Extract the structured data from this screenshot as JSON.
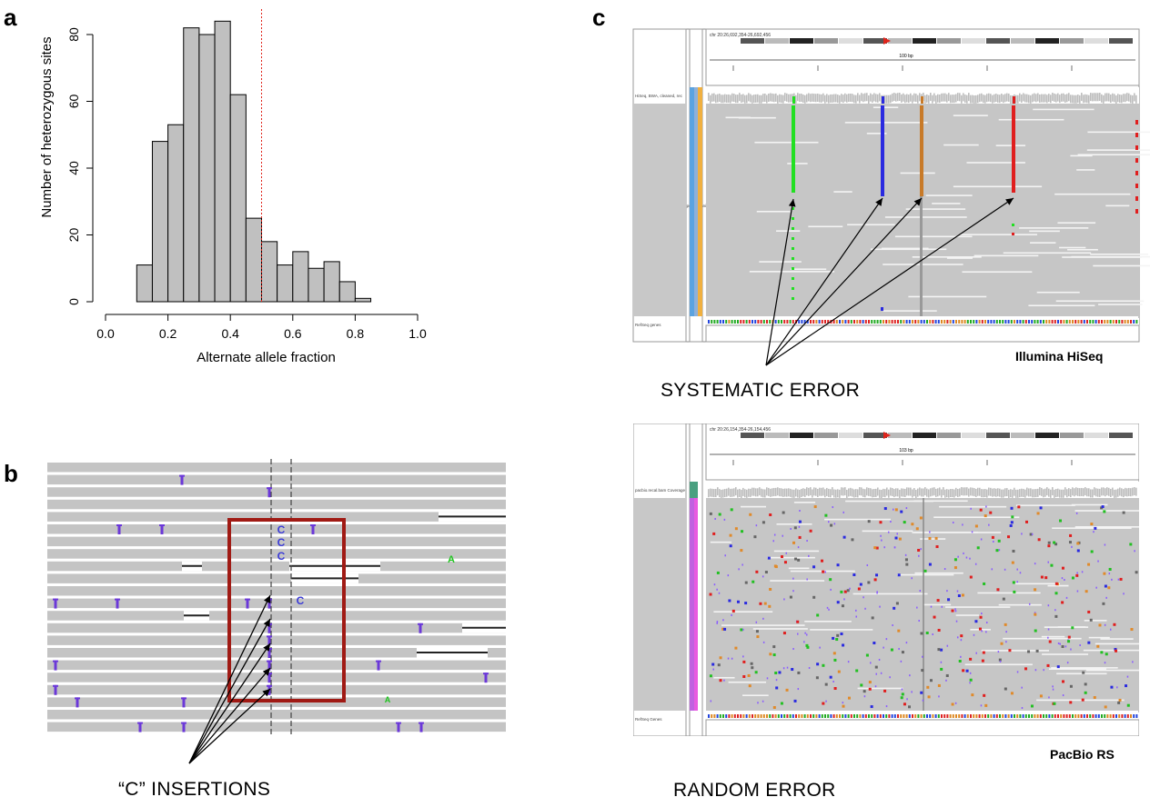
{
  "panel_labels": {
    "a": "a",
    "b": "b",
    "c": "c"
  },
  "chart_data": [
    {
      "type": "bar",
      "panel": "a",
      "bin_edges": [
        0.1,
        0.15,
        0.2,
        0.25,
        0.3,
        0.35,
        0.4,
        0.45,
        0.5,
        0.55,
        0.6,
        0.65,
        0.7,
        0.75,
        0.8,
        0.85
      ],
      "values": [
        11,
        48,
        53,
        82,
        80,
        84,
        62,
        25,
        18,
        11,
        15,
        10,
        12,
        6,
        1
      ],
      "xlabel": "Alternate allele fraction",
      "ylabel": "Number of heterozygous sites",
      "xlim": [
        0.0,
        1.0
      ],
      "ylim": [
        0,
        85
      ],
      "xticks": [
        "0.0",
        "0.2",
        "0.4",
        "0.6",
        "0.8",
        "1.0"
      ],
      "yticks": [
        "0",
        "20",
        "40",
        "60",
        "80"
      ],
      "reference_line": {
        "x": 0.5,
        "style": "dotted",
        "color": "#e0241b"
      },
      "bar_color": "#c0c0c0",
      "grid": false
    }
  ],
  "panel_b": {
    "caption": "“C” INSERTIONS",
    "inserted_bases": [
      "C",
      "C",
      "C",
      "C"
    ],
    "mismatch_base": "A",
    "box_color": "#a01a14",
    "insertion_color": "#6b38d8"
  },
  "panel_c": {
    "illumina": {
      "platform": "Illumina HiSeq",
      "caption": "SYSTEMATIC ERROR",
      "region_text": "chr 20:26,692,354-26,692,456",
      "scale_text": "100 bp",
      "tracks": [
        "HiSeq, BWA, cleaned, rec",
        "HiSeq, BWA, cleaned, recal post cleaning",
        "RefSeq genes"
      ],
      "error_colors": [
        "#22e022",
        "#2a2ae0",
        "#c87a28",
        "#e01e1e"
      ]
    },
    "pacbio": {
      "platform": "PacBio RS",
      "caption": "RANDOM ERROR",
      "region_text": "chr 20:26,154,354-26,154,456",
      "scale_text": "103 bp",
      "tracks": [
        "pacbio.recal.bam Coverage",
        "pacbio.recal.bam",
        "RefSeq Genes"
      ]
    }
  }
}
